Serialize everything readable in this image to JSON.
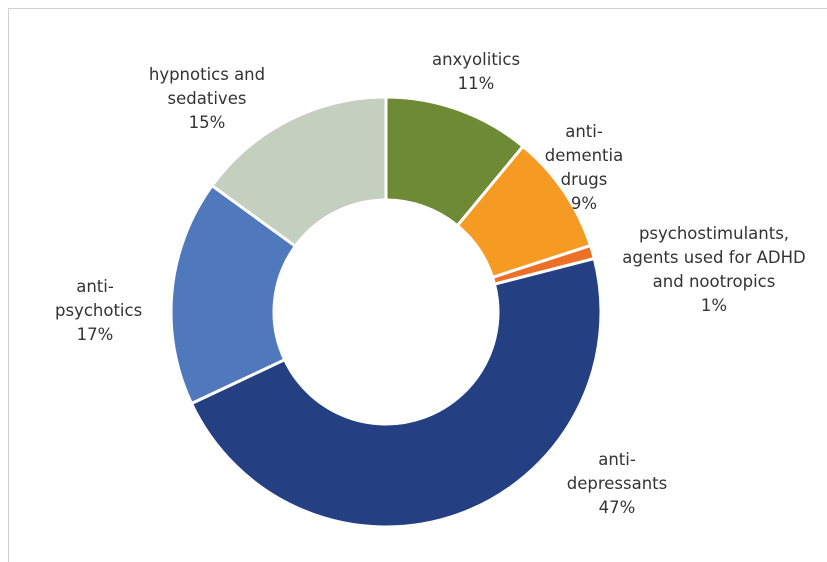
{
  "chart_data": {
    "type": "donut",
    "categories": [
      "anxyolitics",
      "anti-dementia drugs",
      "psychostimulants, agents used for ADHD and nootropics",
      "anti-depressants",
      "anti-psychotics",
      "hypnotics and sedatives"
    ],
    "values": [
      11,
      9,
      1,
      47,
      17,
      15
    ],
    "value_labels": [
      "11%",
      "9%",
      "1%",
      "47%",
      "17%",
      "15%"
    ],
    "colors": [
      "#6f8a35",
      "#f59a23",
      "#ed7027",
      "#243f82",
      "#4f78bd",
      "#c4cfbf"
    ]
  }
}
